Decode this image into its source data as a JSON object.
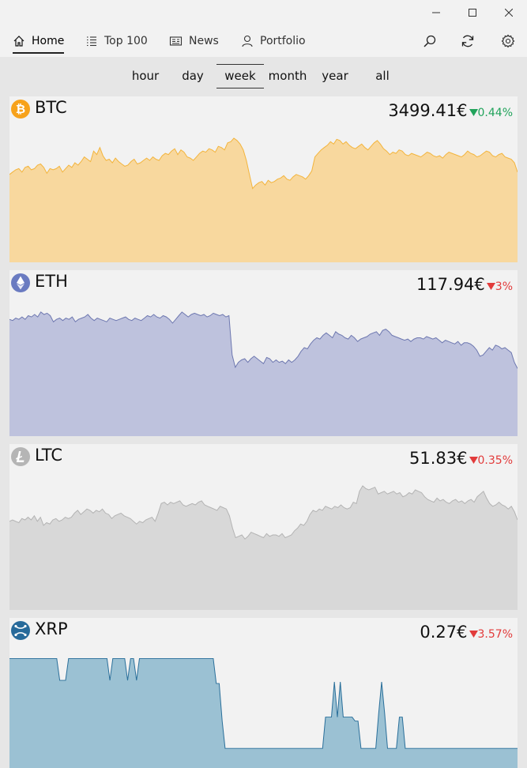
{
  "nav": {
    "home": "Home",
    "top100": "Top 100",
    "news": "News",
    "portfolio": "Portfolio"
  },
  "ranges": [
    "hour",
    "day",
    "week",
    "month",
    "year",
    "all"
  ],
  "selected_range": "week",
  "coins": [
    {
      "symbol": "BTC",
      "price": "3499.41€",
      "change": "0.44%",
      "direction": "up",
      "fill": "#f8d89e",
      "stroke": "#f3b43c",
      "icon_color": "#f7a21b",
      "series": [
        75,
        77,
        79,
        80,
        77,
        81,
        82,
        79,
        80,
        83,
        84,
        81,
        76,
        80,
        79,
        80,
        82,
        77,
        80,
        83,
        81,
        85,
        83,
        86,
        90,
        88,
        86,
        95,
        92,
        98,
        91,
        87,
        88,
        85,
        89,
        86,
        84,
        82,
        83,
        86,
        88,
        84,
        85,
        87,
        89,
        87,
        90,
        88,
        87,
        91,
        93,
        92,
        95,
        97,
        92,
        96,
        94,
        90,
        89,
        87,
        90,
        93,
        95,
        94,
        97,
        96,
        94,
        99,
        98,
        96,
        102,
        103,
        106,
        104,
        101,
        96,
        87,
        75,
        63,
        66,
        68,
        69,
        66,
        70,
        68,
        69,
        71,
        72,
        74,
        71,
        70,
        73,
        75,
        74,
        73,
        71,
        74,
        78,
        90,
        93,
        96,
        98,
        100,
        103,
        101,
        105,
        104,
        101,
        103,
        100,
        98,
        97,
        99,
        101,
        98,
        96,
        99,
        102,
        104,
        101,
        97,
        95,
        92,
        94,
        93,
        96,
        95,
        92,
        91,
        93,
        92,
        91,
        90,
        92,
        94,
        93,
        91,
        90,
        91,
        89,
        92,
        94,
        93,
        92,
        91,
        90,
        92,
        95,
        93,
        92,
        90,
        91,
        93,
        95,
        94,
        91,
        90,
        92,
        93,
        90,
        89,
        88,
        85,
        77
      ]
    },
    {
      "symbol": "ETH",
      "price": "117.94€",
      "change": "3%",
      "direction": "down",
      "fill": "#bec2dd",
      "stroke": "#6e78b0",
      "icon_color": "#6a7bc1",
      "series": [
        95,
        94,
        96,
        95,
        97,
        95,
        98,
        97,
        99,
        97,
        101,
        99,
        100,
        98,
        93,
        95,
        96,
        94,
        96,
        95,
        97,
        93,
        95,
        96,
        97,
        99,
        96,
        94,
        96,
        95,
        94,
        93,
        96,
        95,
        94,
        95,
        96,
        97,
        95,
        94,
        96,
        95,
        94,
        96,
        98,
        97,
        99,
        97,
        96,
        98,
        97,
        95,
        92,
        95,
        98,
        101,
        99,
        97,
        99,
        100,
        99,
        98,
        99,
        97,
        98,
        100,
        99,
        98,
        99,
        97,
        98,
        66,
        56,
        60,
        62,
        63,
        60,
        63,
        65,
        63,
        61,
        59,
        64,
        63,
        60,
        62,
        60,
        61,
        59,
        62,
        60,
        62,
        65,
        69,
        72,
        71,
        75,
        78,
        80,
        79,
        82,
        84,
        82,
        80,
        85,
        83,
        82,
        80,
        79,
        82,
        80,
        77,
        79,
        80,
        81,
        83,
        84,
        85,
        82,
        86,
        87,
        85,
        82,
        81,
        80,
        79,
        78,
        79,
        77,
        79,
        80,
        80,
        79,
        81,
        80,
        79,
        80,
        78,
        76,
        78,
        77,
        76,
        75,
        77,
        74,
        76,
        76,
        75,
        73,
        70,
        65,
        66,
        69,
        72,
        70,
        74,
        73,
        71,
        72,
        70,
        68,
        60,
        55
      ]
    },
    {
      "symbol": "LTC",
      "price": "51.83€",
      "change": "0.35%",
      "direction": "down",
      "fill": "#d8d8d8",
      "stroke": "#b3b3b3",
      "icon_color": "#b5b5b5",
      "series": [
        65,
        66,
        65,
        64,
        67,
        66,
        68,
        66,
        69,
        65,
        68,
        62,
        64,
        63,
        66,
        67,
        65,
        66,
        68,
        67,
        68,
        71,
        73,
        70,
        72,
        74,
        73,
        71,
        73,
        72,
        74,
        71,
        70,
        67,
        69,
        70,
        71,
        69,
        68,
        67,
        65,
        63,
        65,
        64,
        66,
        67,
        68,
        65,
        71,
        78,
        79,
        77,
        79,
        78,
        79,
        80,
        77,
        76,
        77,
        78,
        77,
        79,
        80,
        77,
        76,
        75,
        74,
        73,
        76,
        75,
        74,
        69,
        60,
        53,
        54,
        55,
        52,
        54,
        57,
        56,
        55,
        54,
        53,
        56,
        54,
        55,
        55,
        54,
        56,
        53,
        54,
        55,
        58,
        60,
        63,
        62,
        65,
        70,
        73,
        72,
        74,
        73,
        76,
        75,
        74,
        76,
        75,
        77,
        75,
        74,
        75,
        79,
        78,
        87,
        91,
        89,
        88,
        89,
        90,
        85,
        86,
        87,
        85,
        86,
        87,
        85,
        86,
        83,
        84,
        86,
        85,
        88,
        87,
        86,
        83,
        81,
        80,
        79,
        82,
        80,
        81,
        79,
        78,
        80,
        81,
        79,
        80,
        78,
        80,
        81,
        79,
        83,
        85,
        87,
        82,
        78,
        76,
        77,
        79,
        77,
        76,
        74,
        76,
        72,
        66
      ]
    },
    {
      "symbol": "XRP",
      "price": "0.27€",
      "change": "3.57%",
      "direction": "down",
      "fill": "#9bc1d3",
      "stroke": "#2a6f9a",
      "icon_color": "#276a9a",
      "series": [
        140,
        140,
        140,
        140,
        140,
        140,
        140,
        140,
        140,
        140,
        140,
        140,
        140,
        140,
        140,
        140,
        140,
        112,
        112,
        112,
        140,
        140,
        140,
        140,
        140,
        140,
        140,
        140,
        140,
        140,
        140,
        140,
        140,
        140,
        112,
        140,
        140,
        140,
        140,
        140,
        112,
        140,
        140,
        112,
        140,
        140,
        140,
        140,
        140,
        140,
        140,
        140,
        140,
        140,
        140,
        140,
        140,
        140,
        140,
        140,
        140,
        140,
        140,
        140,
        140,
        140,
        140,
        140,
        140,
        140,
        108,
        108,
        60,
        25,
        25,
        25,
        25,
        25,
        25,
        25,
        25,
        25,
        25,
        25,
        25,
        25,
        25,
        25,
        25,
        25,
        25,
        25,
        25,
        25,
        25,
        25,
        25,
        25,
        25,
        25,
        25,
        25,
        25,
        25,
        25,
        25,
        25,
        65,
        65,
        65,
        110,
        65,
        110,
        65,
        65,
        65,
        65,
        60,
        60,
        25,
        25,
        25,
        25,
        25,
        25,
        70,
        110,
        70,
        25,
        25,
        25,
        25,
        65,
        65,
        25,
        25,
        25,
        25,
        25,
        25,
        25,
        25,
        25,
        25,
        25,
        25,
        25,
        25,
        25,
        25,
        25,
        25,
        25,
        25,
        25,
        25,
        25,
        25,
        25,
        25,
        25,
        25,
        25,
        25,
        25,
        25,
        25,
        25,
        25,
        25,
        25,
        25,
        25
      ]
    }
  ]
}
